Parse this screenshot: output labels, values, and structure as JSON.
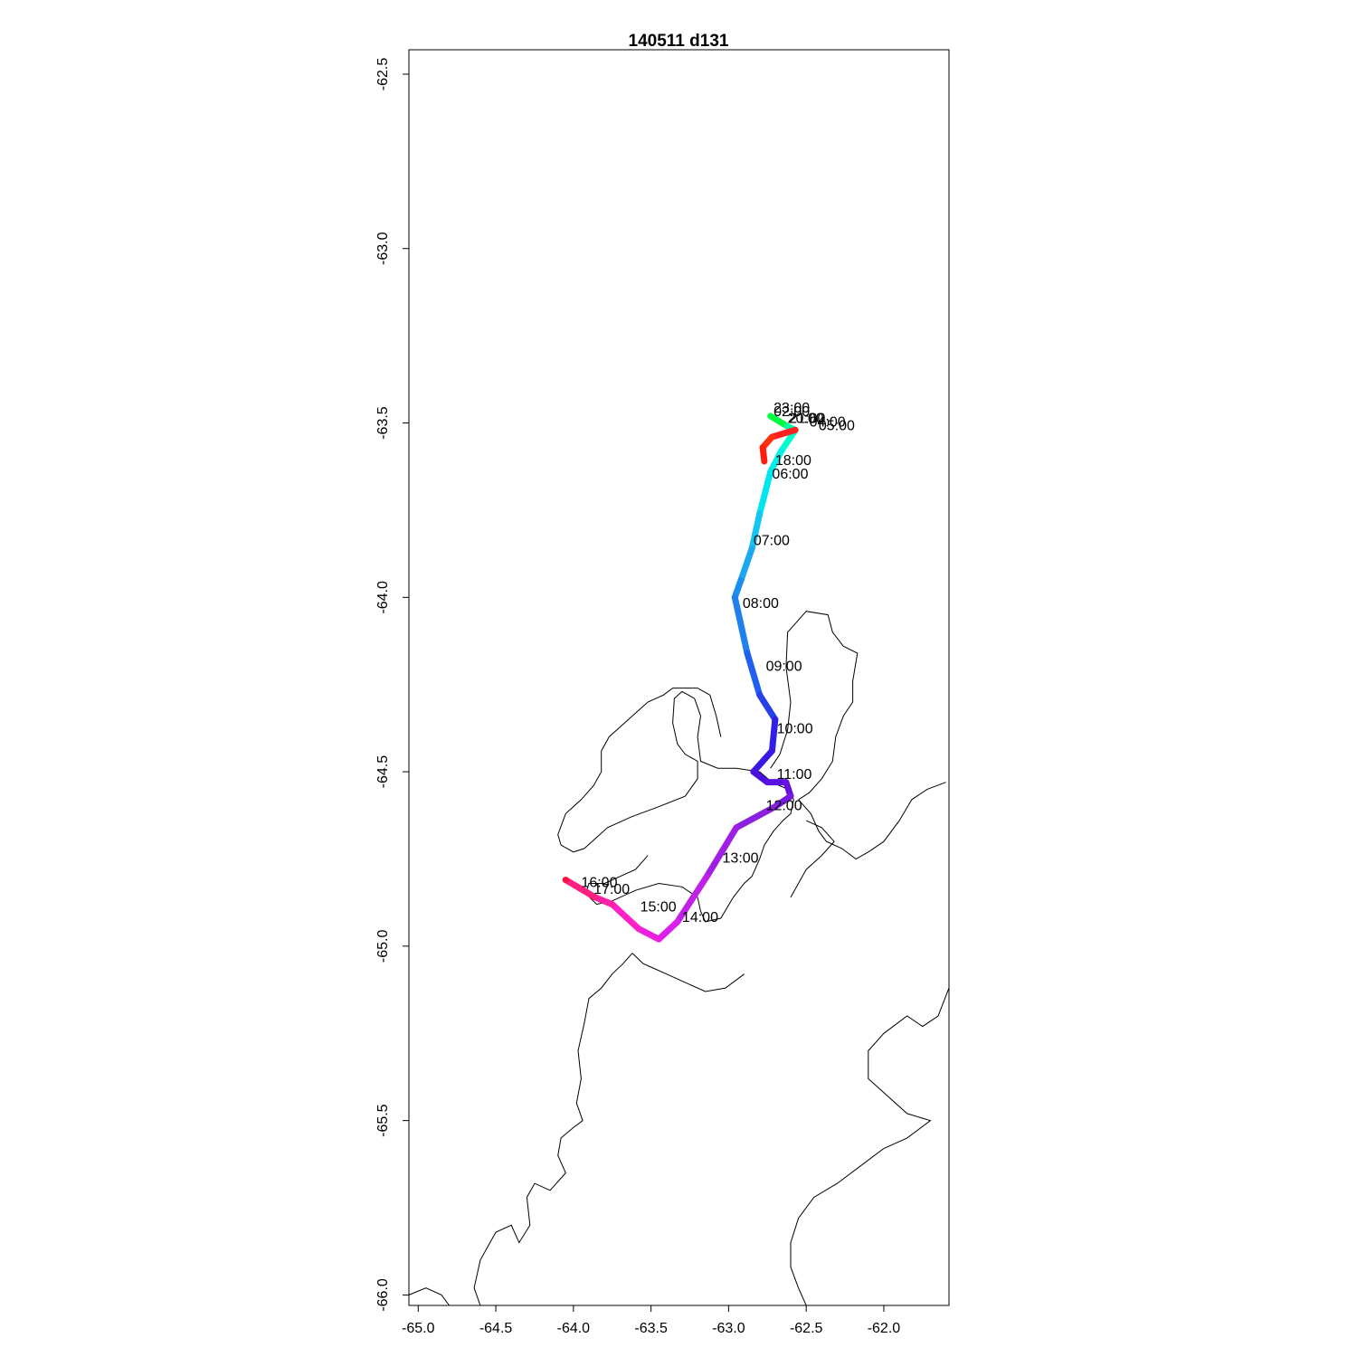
{
  "title": "140511   d131",
  "chart_data": {
    "type": "line",
    "title": "140511   d131",
    "xlabel": "",
    "ylabel": "",
    "xlim": [
      -65.06,
      -61.58
    ],
    "ylim": [
      -66.03,
      -62.43
    ],
    "xticks": [
      "-65.0",
      "-64.5",
      "-64.0",
      "-63.5",
      "-63.0",
      "-62.5",
      "-62.0"
    ],
    "xtick_values": [
      -65.0,
      -64.5,
      -64.0,
      -63.5,
      -63.0,
      -62.5,
      -62.0
    ],
    "yticks": [
      "-62.5",
      "-63.0",
      "-63.5",
      "-64.0",
      "-64.5",
      "-65.0",
      "-65.5",
      "-66.0"
    ],
    "ytick_values": [
      -62.5,
      -63.0,
      -63.5,
      -64.0,
      -64.5,
      -65.0,
      -65.5,
      -66.0
    ],
    "grid": false,
    "track": [
      {
        "lon": -62.73,
        "lat": -63.48,
        "color": "#00ff44"
      },
      {
        "lon": -62.62,
        "lat": -63.51,
        "color": "#00ffaa"
      },
      {
        "lon": -62.57,
        "lat": -63.52,
        "color": "#00ffcc"
      },
      {
        "lon": -62.66,
        "lat": -63.58,
        "color": "#00f0e8"
      },
      {
        "lon": -62.73,
        "lat": -63.64,
        "color": "#00e6ee"
      },
      {
        "lon": -62.8,
        "lat": -63.76,
        "color": "#14c4f2"
      },
      {
        "lon": -62.85,
        "lat": -63.86,
        "color": "#1aa8f0"
      },
      {
        "lon": -62.92,
        "lat": -63.95,
        "color": "#1c8ef0"
      },
      {
        "lon": -62.96,
        "lat": -64.0,
        "color": "#2080ee"
      },
      {
        "lon": -62.88,
        "lat": -64.16,
        "color": "#2060ee"
      },
      {
        "lon": -62.8,
        "lat": -64.28,
        "color": "#2840e8"
      },
      {
        "lon": -62.7,
        "lat": -64.35,
        "color": "#3020e8"
      },
      {
        "lon": -62.72,
        "lat": -64.44,
        "color": "#3a18e4"
      },
      {
        "lon": -62.84,
        "lat": -64.5,
        "color": "#4a10e0"
      },
      {
        "lon": -62.75,
        "lat": -64.53,
        "color": "#5a10e0"
      },
      {
        "lon": -62.63,
        "lat": -64.53,
        "color": "#6a10e0"
      },
      {
        "lon": -62.6,
        "lat": -64.57,
        "color": "#7818e0"
      },
      {
        "lon": -62.7,
        "lat": -64.6,
        "color": "#8a20e0"
      },
      {
        "lon": -62.95,
        "lat": -64.66,
        "color": "#9f20e4"
      },
      {
        "lon": -63.14,
        "lat": -64.8,
        "color": "#c020e8"
      },
      {
        "lon": -63.33,
        "lat": -64.93,
        "color": "#dc20ec"
      },
      {
        "lon": -63.45,
        "lat": -64.98,
        "color": "#ee20e0"
      },
      {
        "lon": -63.58,
        "lat": -64.95,
        "color": "#ff20c8"
      },
      {
        "lon": -63.75,
        "lat": -64.88,
        "color": "#ff20a8"
      },
      {
        "lon": -63.86,
        "lat": -64.86,
        "color": "#ff2080"
      },
      {
        "lon": -64.05,
        "lat": -64.81,
        "color": "#ff1040"
      },
      {
        "lon": -64.05,
        "lat": -64.81,
        "color": "#ff0030"
      }
    ],
    "return_track": [
      {
        "lon": -62.57,
        "lat": -63.52,
        "color": "#ff2020"
      },
      {
        "lon": -62.72,
        "lat": -63.54,
        "color": "#ff3010"
      },
      {
        "lon": -62.78,
        "lat": -63.57,
        "color": "#ff2010"
      },
      {
        "lon": -62.77,
        "lat": -63.61,
        "color": "#ff1a10"
      }
    ],
    "time_labels": [
      {
        "text": "23:00",
        "lon": -62.71,
        "lat": -63.47
      },
      {
        "text": "02:00",
        "lon": -62.71,
        "lat": -63.48
      },
      {
        "text": "20:00",
        "lon": -62.62,
        "lat": -63.5
      },
      {
        "text": "21:00",
        "lon": -62.61,
        "lat": -63.5
      },
      {
        "text": "04:00",
        "lon": -62.48,
        "lat": -63.51
      },
      {
        "text": "05:00",
        "lon": -62.42,
        "lat": -63.52
      },
      {
        "text": "18:00",
        "lon": -62.7,
        "lat": -63.62
      },
      {
        "text": "06:00",
        "lon": -62.72,
        "lat": -63.66
      },
      {
        "text": "07:00",
        "lon": -62.84,
        "lat": -63.85
      },
      {
        "text": "08:00",
        "lon": -62.91,
        "lat": -64.03
      },
      {
        "text": "09:00",
        "lon": -62.76,
        "lat": -64.21
      },
      {
        "text": "10:00",
        "lon": -62.69,
        "lat": -64.39
      },
      {
        "text": "11:00",
        "lon": -62.69,
        "lat": -64.52
      },
      {
        "text": "12:00",
        "lon": -62.76,
        "lat": -64.61
      },
      {
        "text": "13:00",
        "lon": -63.04,
        "lat": -64.76
      },
      {
        "text": "14:00",
        "lon": -63.3,
        "lat": -64.93
      },
      {
        "text": "15:00",
        "lon": -63.57,
        "lat": -64.9
      },
      {
        "text": "16:00",
        "lon": -63.95,
        "lat": -64.83
      },
      {
        "text": "17:00",
        "lon": -63.87,
        "lat": -64.85
      }
    ]
  },
  "coastlines": [
    [
      [
        -63.52,
        -64.74
      ],
      [
        -63.6,
        -64.78
      ],
      [
        -63.7,
        -64.8
      ],
      [
        -63.8,
        -64.82
      ],
      [
        -63.9,
        -64.82
      ],
      [
        -63.92,
        -64.85
      ],
      [
        -63.85,
        -64.88
      ],
      [
        -63.75,
        -64.87
      ],
      [
        -63.6,
        -64.84
      ],
      [
        -63.45,
        -64.82
      ],
      [
        -63.3,
        -64.83
      ],
      [
        -63.2,
        -64.86
      ],
      [
        -63.18,
        -64.9
      ],
      [
        -63.15,
        -64.93
      ],
      [
        -63.05,
        -64.92
      ],
      [
        -62.97,
        -64.86
      ],
      [
        -62.9,
        -64.82
      ],
      [
        -62.85,
        -64.8
      ],
      [
        -62.8,
        -64.75
      ],
      [
        -62.77,
        -64.71
      ],
      [
        -62.71,
        -64.67
      ],
      [
        -62.65,
        -64.64
      ],
      [
        -62.6,
        -64.62
      ],
      [
        -62.58,
        -64.58
      ],
      [
        -62.62,
        -64.55
      ],
      [
        -62.72,
        -64.53
      ],
      [
        -62.8,
        -64.5
      ],
      [
        -62.95,
        -64.49
      ],
      [
        -63.07,
        -64.49
      ],
      [
        -63.18,
        -64.47
      ],
      [
        -63.2,
        -64.4
      ],
      [
        -63.18,
        -64.34
      ],
      [
        -63.22,
        -64.29
      ],
      [
        -63.3,
        -64.27
      ],
      [
        -63.35,
        -64.29
      ],
      [
        -63.36,
        -64.36
      ],
      [
        -63.33,
        -64.42
      ],
      [
        -63.28,
        -64.45
      ],
      [
        -63.2,
        -64.47
      ],
      [
        -63.2,
        -64.52
      ],
      [
        -63.28,
        -64.57
      ],
      [
        -63.45,
        -64.6
      ],
      [
        -63.63,
        -64.63
      ],
      [
        -63.78,
        -64.66
      ],
      [
        -63.88,
        -64.7
      ],
      [
        -63.93,
        -64.72
      ],
      [
        -64.0,
        -64.73
      ],
      [
        -64.08,
        -64.71
      ],
      [
        -64.1,
        -64.68
      ],
      [
        -64.05,
        -64.62
      ],
      [
        -63.95,
        -64.58
      ],
      [
        -63.87,
        -64.54
      ],
      [
        -63.82,
        -64.5
      ],
      [
        -63.82,
        -64.44
      ],
      [
        -63.77,
        -64.4
      ],
      [
        -63.62,
        -64.34
      ],
      [
        -63.52,
        -64.3
      ],
      [
        -63.42,
        -64.28
      ],
      [
        -63.36,
        -64.26
      ],
      [
        -63.2,
        -64.26
      ],
      [
        -63.12,
        -64.28
      ],
      [
        -63.08,
        -64.34
      ],
      [
        -63.05,
        -64.4
      ]
    ],
    [
      [
        -62.73,
        -64.49
      ],
      [
        -62.67,
        -64.45
      ],
      [
        -62.62,
        -64.38
      ],
      [
        -62.6,
        -64.3
      ],
      [
        -62.63,
        -64.2
      ],
      [
        -62.62,
        -64.1
      ],
      [
        -62.5,
        -64.04
      ],
      [
        -62.36,
        -64.05
      ],
      [
        -62.33,
        -64.1
      ],
      [
        -62.26,
        -64.14
      ],
      [
        -62.17,
        -64.16
      ],
      [
        -62.2,
        -64.24
      ],
      [
        -62.2,
        -64.3
      ],
      [
        -62.26,
        -64.34
      ],
      [
        -62.31,
        -64.4
      ],
      [
        -62.33,
        -64.47
      ],
      [
        -62.4,
        -64.52
      ],
      [
        -62.48,
        -64.56
      ],
      [
        -62.55,
        -64.58
      ]
    ],
    [
      [
        -62.55,
        -64.58
      ],
      [
        -62.47,
        -64.62
      ],
      [
        -62.42,
        -64.67
      ],
      [
        -62.37,
        -64.7
      ],
      [
        -62.27,
        -64.72
      ],
      [
        -62.18,
        -64.75
      ],
      [
        -62.1,
        -64.73
      ],
      [
        -62.0,
        -64.7
      ],
      [
        -61.9,
        -64.64
      ],
      [
        -61.82,
        -64.58
      ],
      [
        -61.72,
        -64.55
      ],
      [
        -61.6,
        -64.53
      ]
    ],
    [
      [
        -62.6,
        -64.86
      ],
      [
        -62.55,
        -64.82
      ],
      [
        -62.5,
        -64.78
      ],
      [
        -62.4,
        -64.74
      ],
      [
        -62.32,
        -64.7
      ],
      [
        -62.4,
        -64.66
      ],
      [
        -62.5,
        -64.64
      ]
    ],
    [
      [
        -63.62,
        -65.02
      ],
      [
        -63.68,
        -65.05
      ],
      [
        -63.75,
        -65.08
      ],
      [
        -63.82,
        -65.12
      ],
      [
        -63.9,
        -65.15
      ],
      [
        -63.93,
        -65.22
      ],
      [
        -63.97,
        -65.3
      ],
      [
        -63.95,
        -65.38
      ],
      [
        -63.98,
        -65.45
      ],
      [
        -63.94,
        -65.5
      ],
      [
        -64.0,
        -65.52
      ],
      [
        -64.08,
        -65.55
      ],
      [
        -64.1,
        -65.6
      ],
      [
        -64.05,
        -65.65
      ],
      [
        -64.15,
        -65.7
      ],
      [
        -64.25,
        -65.68
      ],
      [
        -64.3,
        -65.72
      ],
      [
        -64.28,
        -65.8
      ],
      [
        -64.35,
        -65.85
      ],
      [
        -64.4,
        -65.8
      ],
      [
        -64.5,
        -65.82
      ],
      [
        -64.6,
        -65.9
      ],
      [
        -64.64,
        -65.98
      ],
      [
        -64.6,
        -66.03
      ]
    ],
    [
      [
        -63.62,
        -65.02
      ],
      [
        -63.55,
        -65.05
      ],
      [
        -63.5,
        -65.06
      ],
      [
        -63.4,
        -65.08
      ],
      [
        -63.3,
        -65.1
      ],
      [
        -63.15,
        -65.13
      ],
      [
        -63.02,
        -65.12
      ],
      [
        -62.9,
        -65.08
      ]
    ],
    [
      [
        -61.58,
        -65.12
      ],
      [
        -61.65,
        -65.2
      ],
      [
        -61.75,
        -65.23
      ],
      [
        -61.85,
        -65.2
      ],
      [
        -62.0,
        -65.25
      ],
      [
        -62.1,
        -65.3
      ],
      [
        -62.1,
        -65.38
      ],
      [
        -62.0,
        -65.42
      ],
      [
        -61.85,
        -65.48
      ],
      [
        -61.7,
        -65.5
      ],
      [
        -61.85,
        -65.55
      ],
      [
        -62.0,
        -65.58
      ],
      [
        -62.15,
        -65.63
      ],
      [
        -62.3,
        -65.68
      ],
      [
        -62.45,
        -65.72
      ],
      [
        -62.55,
        -65.78
      ],
      [
        -62.6,
        -65.85
      ],
      [
        -62.6,
        -65.92
      ],
      [
        -62.55,
        -65.98
      ],
      [
        -62.5,
        -66.03
      ]
    ],
    [
      [
        -65.06,
        -66.0
      ],
      [
        -64.95,
        -65.98
      ],
      [
        -64.85,
        -66.0
      ],
      [
        -64.8,
        -66.03
      ]
    ]
  ]
}
